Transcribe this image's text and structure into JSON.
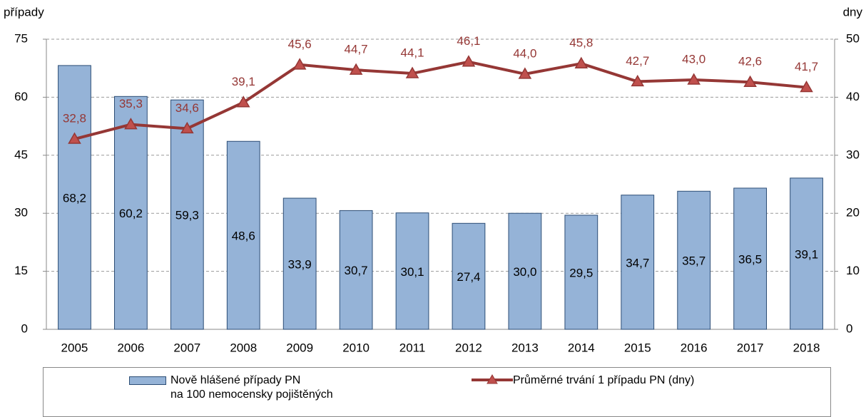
{
  "chart_data": {
    "type": "bar_line",
    "y_axis_label": "případy",
    "y2_axis_label": "dny",
    "categories": [
      "2005",
      "2006",
      "2007",
      "2008",
      "2009",
      "2010",
      "2011",
      "2012",
      "2013",
      "2014",
      "2015",
      "2016",
      "2017",
      "2018"
    ],
    "series": [
      {
        "name": "Nově hlášené případy PN\nna 100 nemocensky pojištěných",
        "type": "bar",
        "color": "#95b3d7",
        "values": [
          68.2,
          60.2,
          59.3,
          48.6,
          33.9,
          30.7,
          30.1,
          27.4,
          30.0,
          29.5,
          34.7,
          35.7,
          36.5,
          39.1
        ],
        "value_labels": [
          "68,2",
          "60,2",
          "59,3",
          "48,6",
          "33,9",
          "30,7",
          "30,1",
          "27,4",
          "30,0",
          "29,5",
          "34,7",
          "35,7",
          "36,5",
          "39,1"
        ]
      },
      {
        "name": "Průměrné trvání 1 případu PN (dny)",
        "type": "line",
        "axis": "y2",
        "color": "#953735",
        "values": [
          32.8,
          35.3,
          34.6,
          39.1,
          45.6,
          44.7,
          44.1,
          46.1,
          44.0,
          45.8,
          42.7,
          43.0,
          42.6,
          41.7
        ],
        "value_labels": [
          "32,8",
          "35,3",
          "34,6",
          "39,1",
          "45,6",
          "44,7",
          "44,1",
          "46,1",
          "44,0",
          "45,8",
          "42,7",
          "43,0",
          "42,6",
          "41,7"
        ]
      }
    ],
    "ylim": [
      0,
      75
    ],
    "yticks": [
      0,
      15,
      30,
      45,
      60,
      75
    ],
    "y2lim": [
      0,
      50
    ],
    "y2ticks": [
      0,
      10,
      20,
      30,
      40,
      50
    ],
    "grid": true
  }
}
